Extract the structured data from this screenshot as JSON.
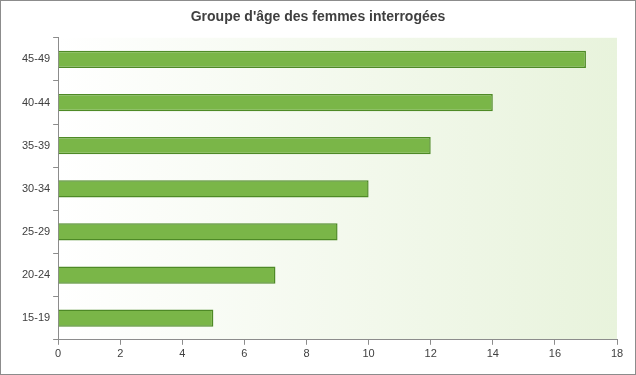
{
  "chart_data": {
    "type": "bar",
    "title": "Groupe d'âge des femmes interrogées",
    "orientation": "horizontal",
    "categories": [
      "15-19",
      "20-24",
      "25-29",
      "30-34",
      "35-39",
      "40-44",
      "45-49"
    ],
    "values": [
      5,
      7,
      9,
      10,
      12,
      14,
      17
    ],
    "color": "#7ab648",
    "xlim": [
      0,
      18
    ],
    "xticks": [
      0,
      2,
      4,
      6,
      8,
      10,
      12,
      14,
      16,
      18
    ],
    "grid": false
  }
}
